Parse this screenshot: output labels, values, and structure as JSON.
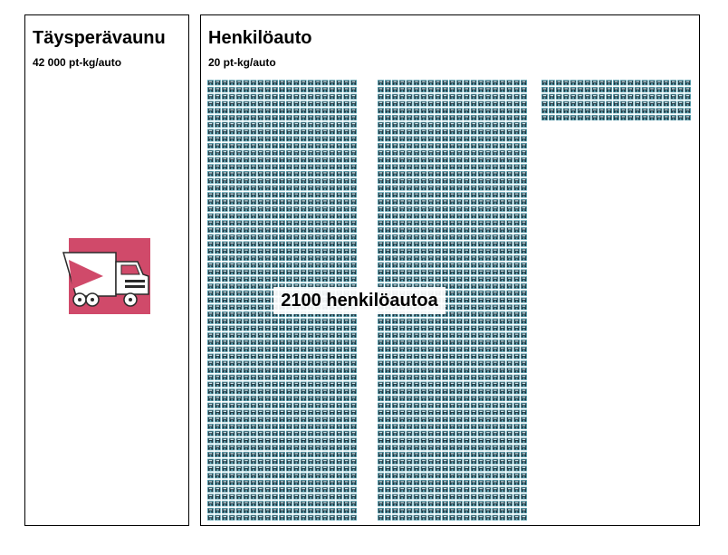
{
  "left_panel": {
    "title": "Täysperävaunu",
    "subtitle": "42 000 pt-kg/auto",
    "icon": "truck-icon"
  },
  "right_panel": {
    "title": "Henkilöauto",
    "subtitle": "20 pt-kg/auto",
    "icon": "car-icon",
    "label": "2100 henkilöautoa"
  },
  "colors": {
    "truck_background": "#d04a6a",
    "truck_body": "#ffffff",
    "car_tile": "#5fa8b8",
    "car_dark": "#1b2a33"
  }
}
